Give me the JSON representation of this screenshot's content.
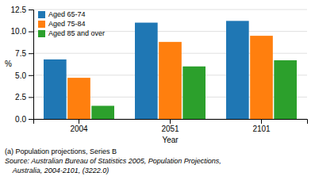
{
  "chart_data": {
    "type": "bar",
    "xlabel": "Year",
    "ylabel": "%",
    "categories": [
      "2004",
      "2051",
      "2101"
    ],
    "series": [
      {
        "name": "Aged 65-74",
        "values": [
          6.8,
          11.0,
          11.2
        ]
      },
      {
        "name": "Aged 75-84",
        "values": [
          4.7,
          8.8,
          9.5
        ]
      },
      {
        "name": "Aged 85 and over",
        "values": [
          1.5,
          6.0,
          6.7
        ]
      }
    ],
    "ylim": [
      0,
      12.5
    ],
    "yticks": [
      {
        "value": 0.0,
        "label": "0.0"
      },
      2.5,
      {
        "value": 5.0,
        "label": "5.0"
      },
      7.5,
      {
        "value": 10.0,
        "label": "10.0"
      },
      12.5
    ],
    "grid": true,
    "legend": "upper left",
    "annotations": [
      "(a) Population projections, Series B",
      "Source: Australian Bureau of Statistics 2005, Population Projections,",
      "    Australia, 2004-2101, (3222.0)"
    ]
  }
}
